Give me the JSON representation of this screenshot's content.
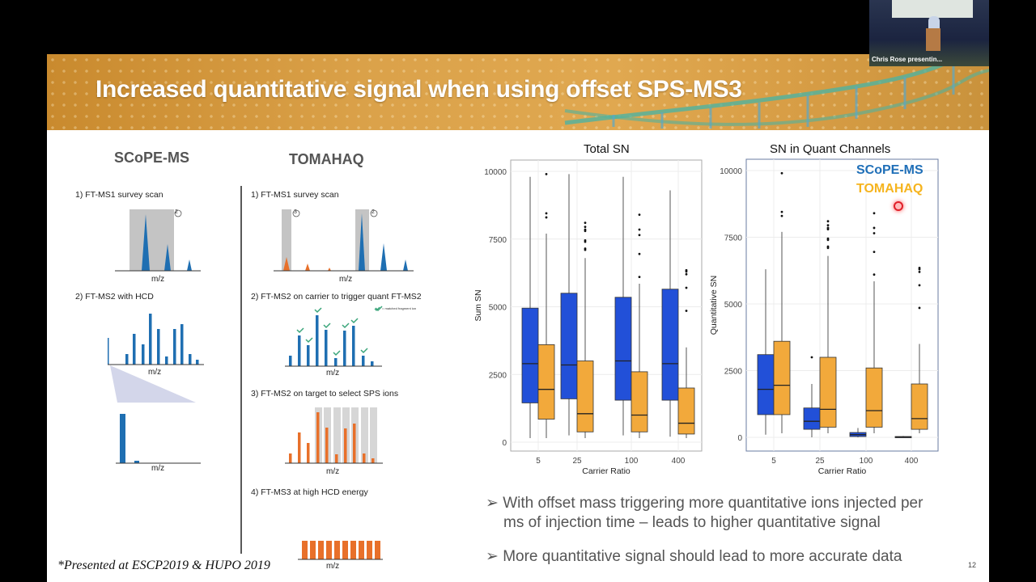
{
  "slide": {
    "title": "Increased quantitative signal when using offset SPS-MS3",
    "page_number": "12",
    "footnote": "*Presented at ESCP2019 & HUPO 2019",
    "bullets": [
      {
        "line1": "With offset mass triggering more quantitative ions injected per",
        "line2": "ms of injection time – leads to higher quantitative signal"
      },
      {
        "line1": "More quantitative signal should lead to more accurate data",
        "line2": ""
      }
    ],
    "bullet_marker": "➢"
  },
  "webcam": {
    "presenter_label": "Chris Rose presentin..."
  },
  "diagram": {
    "scope": {
      "title": "SCoPE-MS",
      "step1": "1) FT-MS1 survey scan",
      "step2": "2)  FT-MS2 with HCD",
      "axis": "m/z",
      "marker2": "2"
    },
    "tomahaq": {
      "title": "TOMAHAQ",
      "step1": "1) FT-MS1 survey scan",
      "step2": "2)  FT-MS2 on carrier to trigger quant FT-MS2",
      "step3": "3)  FT-MS2 on target to select SPS ions",
      "step4": "4)  FT-MS3 at high HCD energy",
      "legend": "= matched fragment ion",
      "axis": "m/z",
      "marker2": "2",
      "marker3": "3"
    }
  },
  "colors": {
    "scope": "#2250d8",
    "tomahaq": "#f2a93b",
    "diagram_blue": "#1f6fb2",
    "diagram_orange": "#e8702a",
    "check": "#3aa57a"
  },
  "chart_data": [
    {
      "type": "box",
      "title": "Total SN",
      "xlabel": "Carrier Ratio",
      "ylabel": "Sum SN",
      "categories": [
        "5",
        "25",
        "100",
        "400"
      ],
      "ylim": [
        0,
        10000
      ],
      "yticks": [
        "0",
        "2500",
        "5000",
        "7500",
        "10000"
      ],
      "grid": true,
      "series": [
        {
          "name": "SCoPE-MS",
          "color": "#2250d8",
          "boxes": [
            {
              "min": 150,
              "q1": 1450,
              "median": 2900,
              "q3": 4950,
              "max": 9800,
              "outliers": []
            },
            {
              "min": 250,
              "q1": 1600,
              "median": 2850,
              "q3": 5500,
              "max": 9900,
              "outliers": []
            },
            {
              "min": 250,
              "q1": 1550,
              "median": 3000,
              "q3": 5350,
              "max": 9800,
              "outliers": []
            },
            {
              "min": 200,
              "q1": 1550,
              "median": 2900,
              "q3": 5650,
              "max": 9300,
              "outliers": []
            }
          ]
        },
        {
          "name": "TOMAHAQ",
          "color": "#f2a93b",
          "boxes": [
            {
              "min": 150,
              "q1": 850,
              "median": 1950,
              "q3": 3600,
              "max": 7700,
              "outliers": [
                8300,
                8450,
                9900
              ]
            },
            {
              "min": 150,
              "q1": 380,
              "median": 1050,
              "q3": 3000,
              "max": 6800,
              "outliers": [
                7100,
                7150,
                7400,
                7450,
                7800,
                7850,
                7950,
                8100
              ]
            },
            {
              "min": 150,
              "q1": 380,
              "median": 1000,
              "q3": 2600,
              "max": 5850,
              "outliers": [
                6100,
                6950,
                7650,
                7850,
                8400
              ]
            },
            {
              "min": 150,
              "q1": 300,
              "median": 700,
              "q3": 2000,
              "max": 3500,
              "outliers": [
                4850,
                5700,
                6200,
                6300,
                6350
              ]
            }
          ]
        }
      ]
    },
    {
      "type": "box",
      "title": "SN in Quant Channels",
      "xlabel": "Carrier Ratio",
      "ylabel": "Quantitative SN",
      "categories": [
        "5",
        "25",
        "100",
        "400"
      ],
      "ylim": [
        0,
        10000
      ],
      "yticks": [
        "0",
        "2500",
        "5000",
        "7500",
        "10000"
      ],
      "grid": true,
      "legend": {
        "placement": "top-right",
        "entries": [
          "SCoPE-MS",
          "TOMAHAQ"
        ]
      },
      "series": [
        {
          "name": "SCoPE-MS",
          "color": "#2250d8",
          "boxes": [
            {
              "min": 100,
              "q1": 850,
              "median": 1800,
              "q3": 3100,
              "max": 6300,
              "outliers": []
            },
            {
              "min": 0,
              "q1": 300,
              "median": 600,
              "q3": 1100,
              "max": 2000,
              "outliers": [
                3000
              ]
            },
            {
              "min": 0,
              "q1": 30,
              "median": 100,
              "q3": 180,
              "max": 350,
              "outliers": []
            },
            {
              "min": 0,
              "q1": 0,
              "median": 10,
              "q3": 30,
              "max": 50,
              "outliers": []
            }
          ]
        },
        {
          "name": "TOMAHAQ",
          "color": "#f2a93b",
          "boxes": [
            {
              "min": 150,
              "q1": 850,
              "median": 1950,
              "q3": 3600,
              "max": 7700,
              "outliers": [
                8300,
                8450,
                9900
              ]
            },
            {
              "min": 150,
              "q1": 380,
              "median": 1050,
              "q3": 3000,
              "max": 6800,
              "outliers": [
                7100,
                7150,
                7400,
                7450,
                7800,
                7850,
                7950,
                8100
              ]
            },
            {
              "min": 150,
              "q1": 380,
              "median": 1000,
              "q3": 2600,
              "max": 5850,
              "outliers": [
                6100,
                6950,
                7650,
                7850,
                8400
              ]
            },
            {
              "min": 150,
              "q1": 300,
              "median": 700,
              "q3": 2000,
              "max": 3500,
              "outliers": [
                4850,
                5700,
                6200,
                6300,
                6350
              ]
            }
          ]
        }
      ]
    }
  ]
}
